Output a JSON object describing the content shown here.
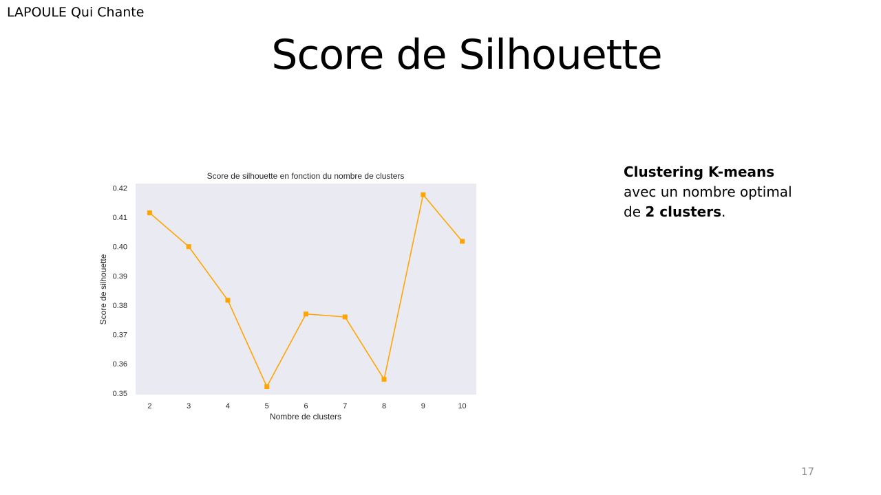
{
  "slide": {
    "author": "LAPOULE Qui Chante",
    "title": "Score de Silhouette",
    "page_number": "17",
    "description": {
      "part1_bold": "Clustering K-means",
      "part2": " avec un nombre optimal de ",
      "part3_bold": "2 clusters",
      "part4": "."
    }
  },
  "chart_data": {
    "type": "line",
    "title": "Score de silhouette en fonction du nombre de clusters",
    "xlabel": "Nombre de clusters",
    "ylabel": "Score de silhouette",
    "x": [
      2,
      3,
      4,
      5,
      6,
      7,
      8,
      9,
      10
    ],
    "series": [
      {
        "values": [
          0.4115,
          0.4,
          0.3817,
          0.3522,
          0.377,
          0.376,
          0.3547,
          0.4177,
          0.4018
        ],
        "color": "#FFA500",
        "marker": "square"
      }
    ],
    "ylim": [
      0.3495,
      0.4215
    ],
    "yticks": [
      "0.35",
      "0.36",
      "0.37",
      "0.38",
      "0.39",
      "0.40",
      "0.41",
      "0.42"
    ],
    "xticks": [
      "2",
      "3",
      "4",
      "5",
      "6",
      "7",
      "8",
      "9",
      "10"
    ],
    "grid": false,
    "background": "#EAEAF2"
  }
}
